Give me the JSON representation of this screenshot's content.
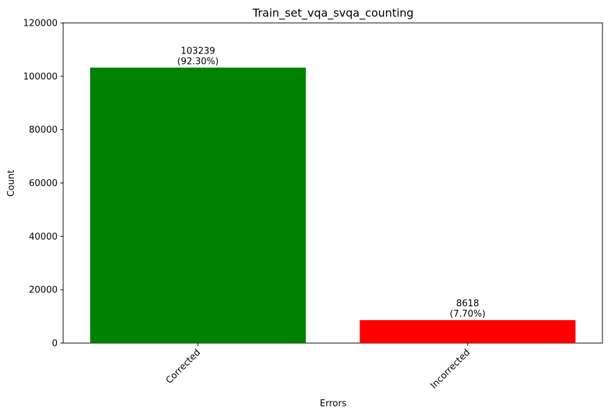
{
  "chart_data": {
    "type": "bar",
    "title": "Train_set_vqa_svqa_counting",
    "xlabel": "Errors",
    "ylabel": "Count",
    "categories": [
      "Corrected",
      "Incorrected"
    ],
    "values": [
      103239,
      8618
    ],
    "bar_labels": [
      [
        "103239",
        "(92.30%)"
      ],
      [
        "8618",
        "(7.70%)"
      ]
    ],
    "colors": [
      "#008000",
      "#ff0000"
    ],
    "ylim": [
      0,
      120000
    ],
    "yticks": [
      0,
      20000,
      40000,
      60000,
      80000,
      100000,
      120000
    ],
    "x_tick_rotation_deg": 45,
    "grid": false,
    "legend": "none"
  }
}
